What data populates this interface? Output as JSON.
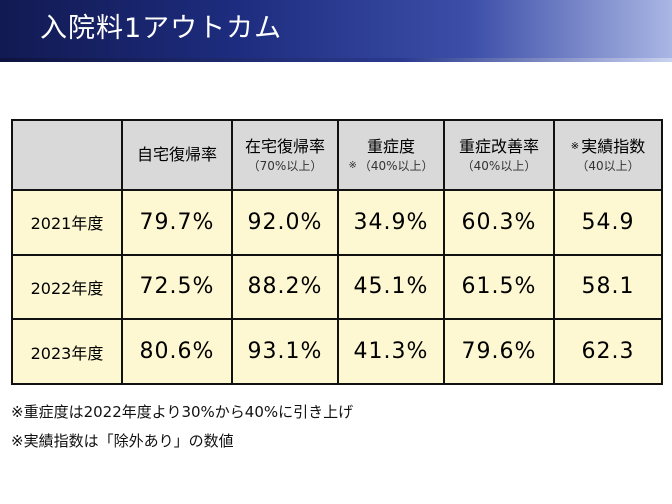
{
  "slide": {
    "title": "入院料1アウトカム"
  },
  "table": {
    "columns": [
      {
        "main": "自宅復帰率",
        "sub": "",
        "mark": "",
        "sub_mark": ""
      },
      {
        "main": "在宅復帰率",
        "sub": "（70%以上）",
        "mark": "",
        "sub_mark": ""
      },
      {
        "main": "重症度",
        "sub": "（40%以上）",
        "mark": "",
        "sub_mark": "※"
      },
      {
        "main": "重症改善率",
        "sub": "（40%以上）",
        "mark": "",
        "sub_mark": ""
      },
      {
        "main": "実績指数",
        "sub": "（40以上）",
        "mark": "※",
        "sub_mark": ""
      }
    ],
    "rows": [
      {
        "year": "2021年度",
        "values": [
          "79.7%",
          "92.0%",
          "34.9%",
          "60.3%",
          "54.9"
        ]
      },
      {
        "year": "2022年度",
        "values": [
          "72.5%",
          "88.2%",
          "45.1%",
          "61.5%",
          "58.1"
        ]
      },
      {
        "year": "2023年度",
        "values": [
          "80.6%",
          "93.1%",
          "41.3%",
          "79.6%",
          "62.3"
        ]
      }
    ]
  },
  "notes": [
    "※重症度は2022年度より30%から40%に引き上げ",
    "※実績指数は「除外あり」の数値"
  ]
}
